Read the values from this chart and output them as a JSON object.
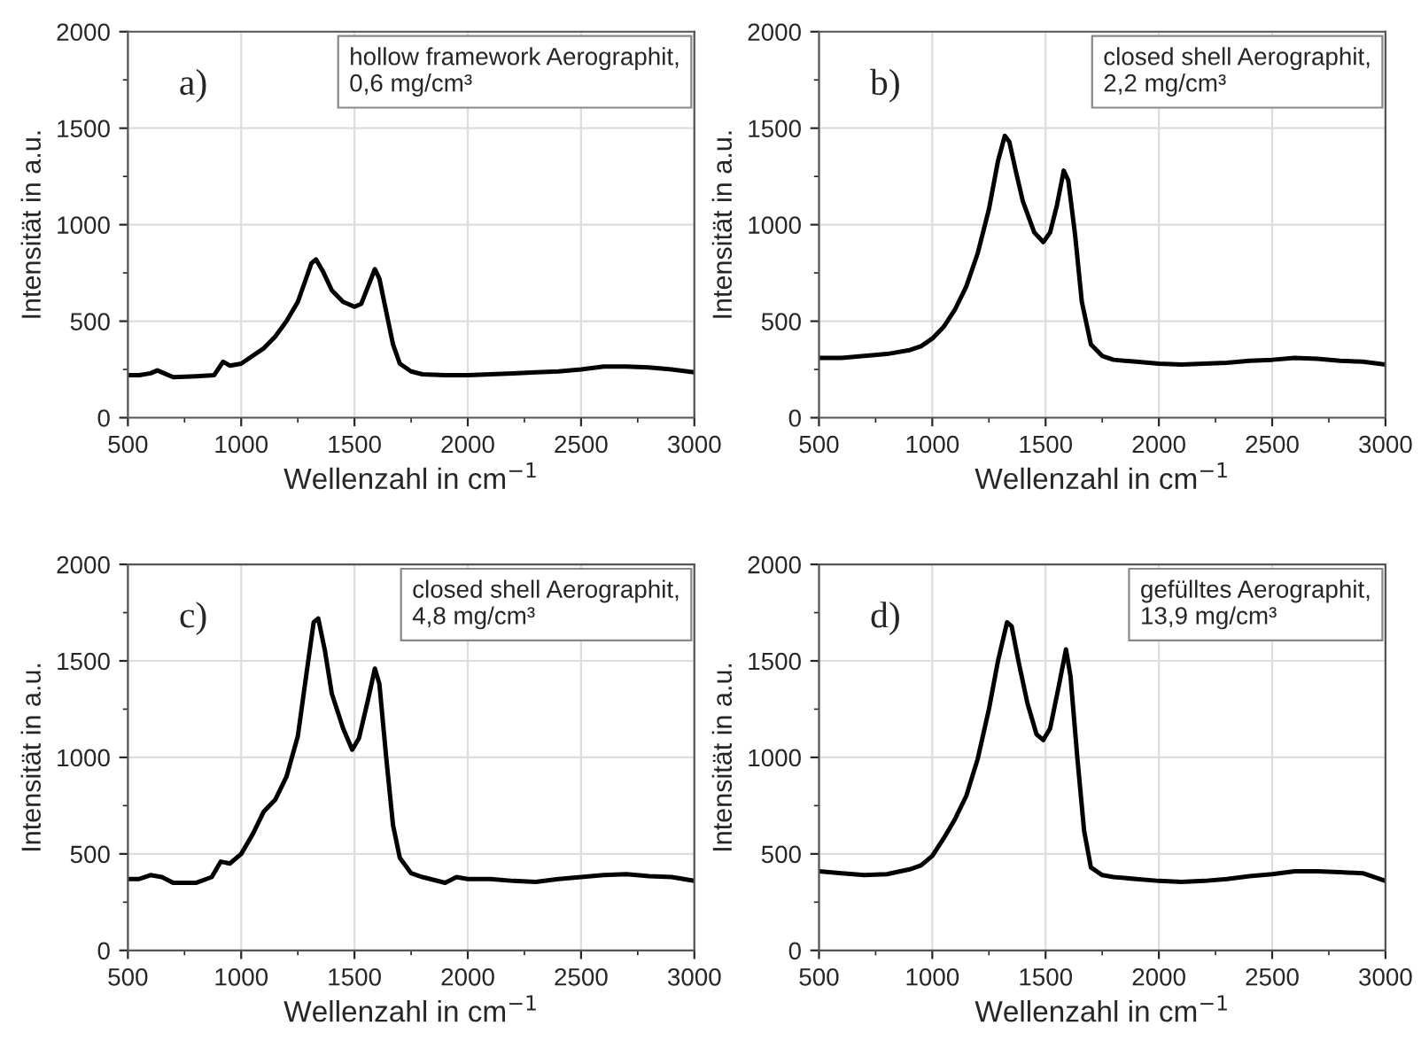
{
  "chart_data": [
    {
      "type": "line",
      "xlabel": "Wellenzahl in cm$^{−1}$",
      "ylabel": "Intensität in a.u.",
      "annotations": [
        "a)",
        "hollow framework Aerographit,\n0,6 mg/cm³"
      ],
      "xlim": [
        500,
        3000
      ],
      "ylim": [
        0,
        2000
      ],
      "xticks": [
        500,
        1000,
        1500,
        2000,
        2500,
        3000
      ],
      "yticks": [
        0,
        500,
        1000,
        1500,
        2000
      ],
      "grid": true,
      "marker": "none",
      "line_style": "solid",
      "series": [
        {
          "color": "#000000",
          "x": [
            500,
            550,
            600,
            630,
            660,
            700,
            800,
            880,
            920,
            950,
            1000,
            1050,
            1100,
            1150,
            1200,
            1250,
            1280,
            1310,
            1330,
            1360,
            1400,
            1450,
            1500,
            1530,
            1560,
            1590,
            1610,
            1640,
            1670,
            1700,
            1750,
            1800,
            1900,
            2000,
            2100,
            2200,
            2300,
            2400,
            2500,
            2600,
            2700,
            2800,
            2900,
            3000
          ],
          "values": [
            220,
            220,
            230,
            245,
            230,
            210,
            215,
            220,
            290,
            270,
            280,
            320,
            360,
            420,
            500,
            600,
            700,
            800,
            820,
            760,
            660,
            600,
            575,
            590,
            680,
            770,
            720,
            550,
            380,
            280,
            240,
            225,
            220,
            220,
            225,
            230,
            235,
            240,
            250,
            265,
            265,
            260,
            250,
            235
          ]
        }
      ]
    },
    {
      "type": "line",
      "xlabel": "Wellenzahl in cm$^{−1}$",
      "ylabel": "Intensität in a.u.",
      "annotations": [
        "b)",
        "closed shell Aerographit,\n2,2 mg/cm³"
      ],
      "xlim": [
        500,
        3000
      ],
      "ylim": [
        0,
        2000
      ],
      "xticks": [
        500,
        1000,
        1500,
        2000,
        2500,
        3000
      ],
      "yticks": [
        0,
        500,
        1000,
        1500,
        2000
      ],
      "grid": true,
      "marker": "none",
      "line_style": "solid",
      "series": [
        {
          "color": "#000000",
          "x": [
            500,
            600,
            700,
            800,
            900,
            950,
            1000,
            1050,
            1100,
            1150,
            1200,
            1250,
            1290,
            1320,
            1340,
            1370,
            1400,
            1450,
            1490,
            1520,
            1550,
            1580,
            1600,
            1630,
            1660,
            1700,
            1750,
            1800,
            1900,
            2000,
            2100,
            2200,
            2300,
            2400,
            2500,
            2600,
            2700,
            2800,
            2900,
            3000
          ],
          "values": [
            310,
            310,
            320,
            330,
            350,
            370,
            410,
            470,
            560,
            680,
            850,
            1080,
            1330,
            1460,
            1430,
            1270,
            1120,
            960,
            910,
            960,
            1100,
            1280,
            1230,
            950,
            600,
            380,
            320,
            300,
            290,
            280,
            275,
            280,
            285,
            295,
            300,
            310,
            305,
            295,
            290,
            275
          ]
        }
      ]
    },
    {
      "type": "line",
      "xlabel": "Wellenzahl in cm$^{−1}$",
      "ylabel": "Intensität in a.u.",
      "annotations": [
        "c)",
        "closed shell Aerographit,\n4,8 mg/cm³"
      ],
      "xlim": [
        500,
        3000
      ],
      "ylim": [
        0,
        2000
      ],
      "xticks": [
        500,
        1000,
        1500,
        2000,
        2500,
        3000
      ],
      "yticks": [
        0,
        500,
        1000,
        1500,
        2000
      ],
      "grid": true,
      "marker": "none",
      "line_style": "solid",
      "series": [
        {
          "color": "#000000",
          "x": [
            500,
            550,
            600,
            650,
            700,
            800,
            870,
            910,
            950,
            1000,
            1050,
            1100,
            1150,
            1200,
            1250,
            1290,
            1320,
            1340,
            1370,
            1400,
            1450,
            1490,
            1520,
            1560,
            1590,
            1610,
            1640,
            1670,
            1700,
            1750,
            1800,
            1900,
            1950,
            2000,
            2100,
            2200,
            2300,
            2400,
            2500,
            2600,
            2700,
            2800,
            2900,
            3000
          ],
          "values": [
            370,
            370,
            390,
            380,
            350,
            350,
            380,
            460,
            450,
            500,
            600,
            720,
            780,
            900,
            1110,
            1450,
            1700,
            1720,
            1550,
            1330,
            1150,
            1040,
            1100,
            1300,
            1460,
            1380,
            1000,
            650,
            480,
            400,
            380,
            350,
            380,
            370,
            370,
            360,
            355,
            370,
            380,
            390,
            395,
            385,
            380,
            360
          ]
        }
      ]
    },
    {
      "type": "line",
      "xlabel": "Wellenzahl in cm$^{−1}$",
      "ylabel": "Intensität in a.u.",
      "annotations": [
        "d)",
        "gefülltes Aerographit,\n13,9 mg/cm³"
      ],
      "xlim": [
        500,
        3000
      ],
      "ylim": [
        0,
        2000
      ],
      "xticks": [
        500,
        1000,
        1500,
        2000,
        2500,
        3000
      ],
      "yticks": [
        0,
        500,
        1000,
        1500,
        2000
      ],
      "grid": true,
      "marker": "none",
      "line_style": "solid",
      "series": [
        {
          "color": "#000000",
          "x": [
            500,
            600,
            700,
            800,
            900,
            950,
            1000,
            1050,
            1100,
            1150,
            1200,
            1250,
            1290,
            1330,
            1350,
            1380,
            1420,
            1460,
            1490,
            1520,
            1560,
            1590,
            1610,
            1640,
            1670,
            1700,
            1750,
            1800,
            1900,
            2000,
            2100,
            2200,
            2300,
            2400,
            2500,
            2600,
            2700,
            2800,
            2900,
            3000
          ],
          "values": [
            410,
            400,
            390,
            395,
            420,
            440,
            490,
            580,
            680,
            800,
            990,
            1250,
            1500,
            1700,
            1680,
            1500,
            1280,
            1120,
            1090,
            1150,
            1380,
            1560,
            1420,
            1000,
            620,
            430,
            390,
            380,
            370,
            360,
            355,
            360,
            370,
            385,
            395,
            410,
            410,
            405,
            400,
            360
          ]
        }
      ]
    }
  ]
}
